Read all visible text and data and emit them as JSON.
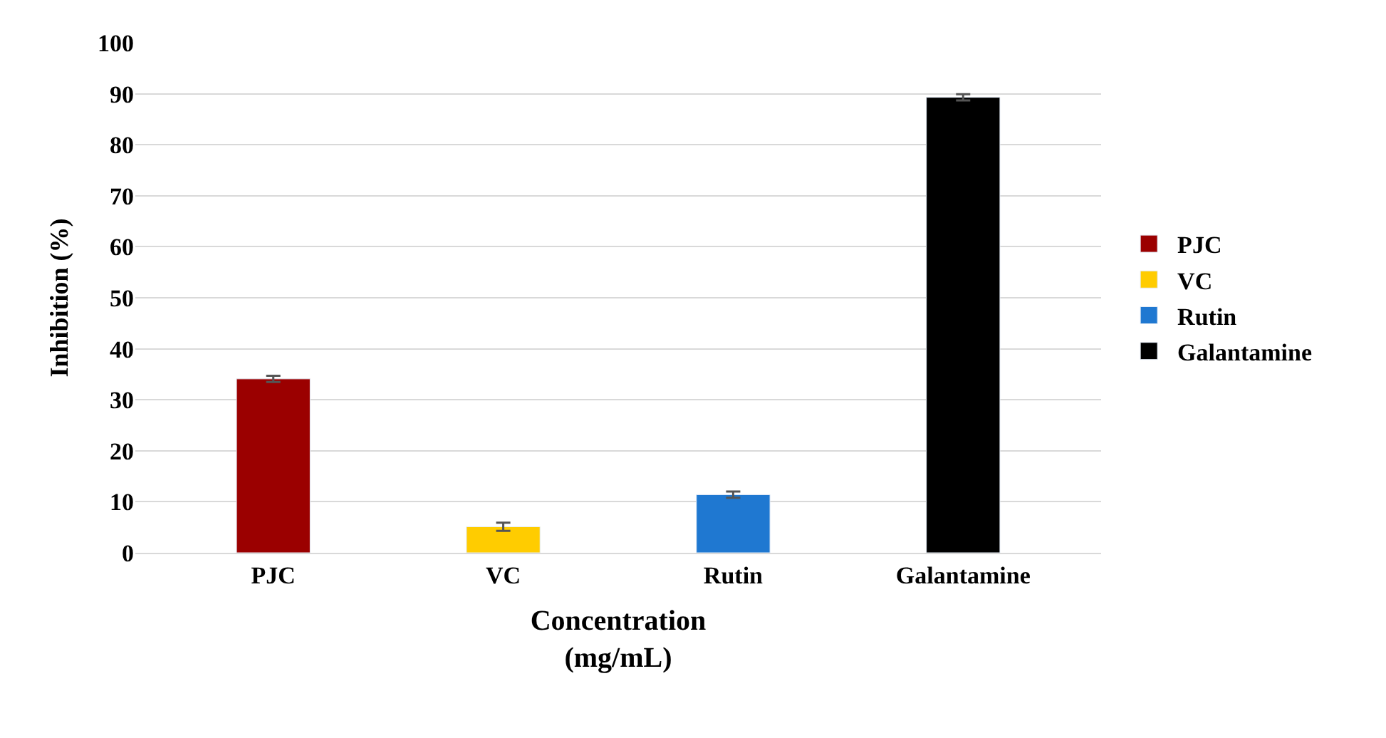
{
  "chart_data": {
    "type": "bar",
    "xlabel": "Concentration\n(mg/mL)",
    "ylabel": "Inhibition (%)",
    "categories": [
      "PJC",
      "VC",
      "Rutin",
      "Galantamine"
    ],
    "series": [
      {
        "name": "PJC",
        "color": "#9b0000",
        "values": [
          34.1,
          null,
          null,
          null
        ],
        "errors": [
          0.6,
          null,
          null,
          null
        ]
      },
      {
        "name": "VC",
        "color": "#ffcc00",
        "values": [
          null,
          5.1,
          null,
          null
        ],
        "errors": [
          null,
          0.8,
          null,
          null
        ]
      },
      {
        "name": "Rutin",
        "color": "#1f78d1",
        "values": [
          null,
          null,
          11.4,
          null
        ],
        "errors": [
          null,
          null,
          0.6,
          null
        ]
      },
      {
        "name": "Galantamine",
        "color": "#000000",
        "values": [
          null,
          null,
          null,
          89.3
        ],
        "errors": [
          null,
          null,
          null,
          0.6
        ]
      }
    ],
    "ylim": [
      0,
      100
    ],
    "yticks": [
      0,
      10,
      20,
      30,
      40,
      50,
      60,
      70,
      80,
      90,
      100
    ],
    "grid": "y",
    "legend": "right"
  }
}
